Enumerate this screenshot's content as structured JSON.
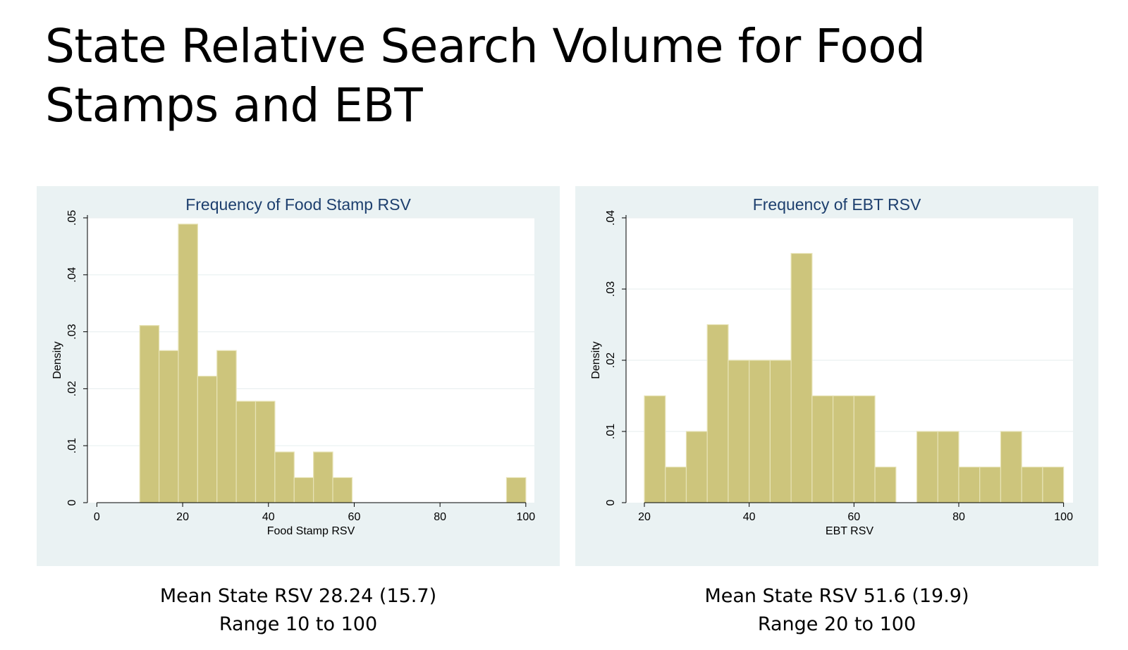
{
  "slide": {
    "title": "State Relative Search Volume for Food Stamps and EBT"
  },
  "colors": {
    "panel_bg": "#eaf2f3",
    "plot_bg": "#ffffff",
    "bar_fill": "#cdc57c",
    "bar_stroke": "#e7e3b6",
    "grid": "#e9f0f1",
    "title_color": "#1d3f6e"
  },
  "chart_data": [
    {
      "type": "bar",
      "title": "Frequency of Food Stamp RSV",
      "xlabel": "Food Stamp RSV",
      "ylabel": "Density",
      "xlim": [
        -2.2,
        102
      ],
      "ylim": [
        0,
        0.05
      ],
      "xticks": [
        0,
        20,
        40,
        60,
        80,
        100
      ],
      "yticks": [
        0,
        0.01,
        0.02,
        0.03,
        0.04,
        0.05
      ],
      "ytick_labels": [
        "0",
        ".01",
        ".02",
        ".03",
        ".04",
        ".05"
      ],
      "grid": true,
      "bins": [
        {
          "x0": 10.0,
          "x1": 14.5,
          "value": 0.0311
        },
        {
          "x0": 14.5,
          "x1": 19.0,
          "value": 0.0267
        },
        {
          "x0": 19.0,
          "x1": 23.5,
          "value": 0.0489
        },
        {
          "x0": 23.5,
          "x1": 28.0,
          "value": 0.0222
        },
        {
          "x0": 28.0,
          "x1": 32.5,
          "value": 0.0267
        },
        {
          "x0": 32.5,
          "x1": 37.0,
          "value": 0.0178
        },
        {
          "x0": 37.0,
          "x1": 41.5,
          "value": 0.0178
        },
        {
          "x0": 41.5,
          "x1": 46.0,
          "value": 0.0089
        },
        {
          "x0": 46.0,
          "x1": 50.5,
          "value": 0.0044
        },
        {
          "x0": 50.5,
          "x1": 55.0,
          "value": 0.0089
        },
        {
          "x0": 55.0,
          "x1": 59.5,
          "value": 0.0044
        },
        {
          "x0": 95.5,
          "x1": 100.0,
          "value": 0.0044
        }
      ]
    },
    {
      "type": "bar",
      "title": "Frequency of EBT RSV",
      "xlabel": "EBT RSV",
      "ylabel": "Density",
      "xlim": [
        16.5,
        101.8
      ],
      "ylim": [
        0,
        0.04
      ],
      "xticks": [
        20,
        40,
        60,
        80,
        100
      ],
      "yticks": [
        0,
        0.01,
        0.02,
        0.03,
        0.04
      ],
      "ytick_labels": [
        "0",
        ".01",
        ".02",
        ".03",
        ".04"
      ],
      "grid": true,
      "bins": [
        {
          "x0": 20,
          "x1": 24,
          "value": 0.015
        },
        {
          "x0": 24,
          "x1": 28,
          "value": 0.005
        },
        {
          "x0": 28,
          "x1": 32,
          "value": 0.01
        },
        {
          "x0": 32,
          "x1": 36,
          "value": 0.025
        },
        {
          "x0": 36,
          "x1": 40,
          "value": 0.02
        },
        {
          "x0": 40,
          "x1": 44,
          "value": 0.02
        },
        {
          "x0": 44,
          "x1": 48,
          "value": 0.02
        },
        {
          "x0": 48,
          "x1": 52,
          "value": 0.035
        },
        {
          "x0": 52,
          "x1": 56,
          "value": 0.015
        },
        {
          "x0": 56,
          "x1": 60,
          "value": 0.015
        },
        {
          "x0": 60,
          "x1": 64,
          "value": 0.015
        },
        {
          "x0": 64,
          "x1": 68,
          "value": 0.005
        },
        {
          "x0": 72,
          "x1": 76,
          "value": 0.01
        },
        {
          "x0": 76,
          "x1": 80,
          "value": 0.01
        },
        {
          "x0": 80,
          "x1": 84,
          "value": 0.005
        },
        {
          "x0": 84,
          "x1": 88,
          "value": 0.005
        },
        {
          "x0": 88,
          "x1": 92,
          "value": 0.01
        },
        {
          "x0": 92,
          "x1": 96,
          "value": 0.005
        },
        {
          "x0": 96,
          "x1": 100,
          "value": 0.005
        }
      ]
    }
  ],
  "captions": [
    {
      "line1": "Mean State RSV 28.24 (15.7)",
      "line2": "Range 10 to 100"
    },
    {
      "line1": "Mean State RSV 51.6 (19.9)",
      "line2": "Range 20 to 100"
    }
  ]
}
